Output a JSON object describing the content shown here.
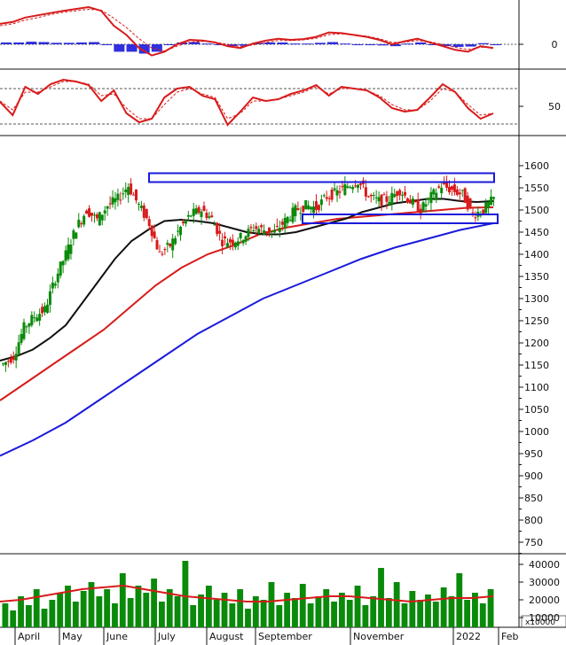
{
  "chart_data": [
    {
      "type": "line",
      "panel": "macd",
      "title": "",
      "y_ticks": [
        0
      ],
      "series": [
        {
          "name": "",
          "color": "#d81b1b",
          "values": [
            0.55,
            0.6,
            0.72,
            0.78,
            0.84,
            0.9,
            0.95,
            1.0,
            0.9,
            0.5,
            0.25,
            -0.1,
            -0.3,
            -0.2,
            0.0,
            0.12,
            0.1,
            0.05,
            -0.05,
            -0.1,
            0.02,
            0.1,
            0.15,
            0.12,
            0.14,
            0.2,
            0.32,
            0.3,
            0.25,
            0.2,
            0.12,
            0.0,
            0.08,
            0.15,
            0.05,
            -0.05,
            -0.15,
            -0.2,
            -0.05,
            -0.1
          ]
        },
        {
          "name": "",
          "color": "#d81b1b",
          "values": [
            0.5,
            0.55,
            0.65,
            0.72,
            0.8,
            0.86,
            0.9,
            0.94,
            0.92,
            0.7,
            0.45,
            0.15,
            -0.1,
            -0.18,
            -0.05,
            0.06,
            0.08,
            0.06,
            0.0,
            -0.06,
            -0.02,
            0.05,
            0.1,
            0.1,
            0.12,
            0.16,
            0.26,
            0.28,
            0.26,
            0.22,
            0.15,
            0.05,
            0.06,
            0.1,
            0.07,
            0.0,
            -0.08,
            -0.14,
            -0.08,
            -0.08
          ]
        },
        {
          "name": "",
          "color": "#1a1adb",
          "type": "histogram",
          "values": [
            0.05,
            0.05,
            0.07,
            0.06,
            0.04,
            0.04,
            0.05,
            0.06,
            -0.02,
            -0.2,
            -0.2,
            -0.25,
            -0.2,
            -0.02,
            0.05,
            0.06,
            0.02,
            -0.01,
            -0.05,
            -0.04,
            0.04,
            0.05,
            0.05,
            0.02,
            0.02,
            0.04,
            0.06,
            0.02,
            -0.01,
            -0.02,
            -0.03,
            -0.05,
            0.02,
            0.05,
            -0.02,
            -0.05,
            -0.07,
            -0.06,
            0.03,
            -0.02
          ]
        }
      ]
    },
    {
      "type": "line",
      "panel": "rsi",
      "title": "",
      "y_ticks": [
        50
      ],
      "levels": [
        70,
        30
      ],
      "series": [
        {
          "name": "",
          "color": "#d81b1b",
          "values": [
            55,
            40,
            72,
            64,
            75,
            80,
            78,
            74,
            56,
            68,
            42,
            32,
            36,
            60,
            70,
            72,
            62,
            58,
            29,
            44,
            60,
            56,
            58,
            64,
            68,
            74,
            62,
            72,
            70,
            68,
            60,
            48,
            44,
            46,
            60,
            75,
            66,
            48,
            36,
            42
          ]
        },
        {
          "name": "",
          "color": "#d81b1b",
          "values": [
            56,
            46,
            66,
            66,
            72,
            78,
            78,
            75,
            62,
            64,
            48,
            36,
            36,
            52,
            66,
            70,
            64,
            60,
            36,
            42,
            56,
            56,
            58,
            62,
            66,
            72,
            64,
            70,
            70,
            68,
            62,
            52,
            46,
            46,
            56,
            70,
            66,
            52,
            40,
            42
          ]
        }
      ]
    },
    {
      "type": "candlestick",
      "panel": "price",
      "title": "",
      "ylim": [
        725,
        1625
      ],
      "y_ticks": [
        750,
        800,
        850,
        900,
        950,
        1000,
        1050,
        1100,
        1150,
        1200,
        1250,
        1300,
        1350,
        1400,
        1450,
        1500,
        1550,
        1600
      ],
      "x_labels": [
        "April",
        "May",
        "June",
        "July",
        "August",
        "September",
        "November",
        "2022",
        "Feb"
      ],
      "close": [
        1152,
        1170,
        1235,
        1260,
        1275,
        1345,
        1400,
        1460,
        1500,
        1478,
        1510,
        1525,
        1555,
        1510,
        1470,
        1400,
        1420,
        1460,
        1490,
        1500,
        1480,
        1430,
        1430,
        1440,
        1460,
        1455,
        1450,
        1475,
        1500,
        1510,
        1505,
        1530,
        1540,
        1555,
        1565,
        1530,
        1520,
        1525,
        1545,
        1520,
        1500,
        1530,
        1555,
        1545,
        1535,
        1490,
        1500,
        1525
      ],
      "ma_black": [
        1160,
        1170,
        1185,
        1210,
        1240,
        1290,
        1340,
        1390,
        1430,
        1455,
        1475,
        1478,
        1475,
        1470,
        1460,
        1450,
        1445,
        1445,
        1450,
        1460,
        1470,
        1480,
        1495,
        1505,
        1515,
        1520,
        1525,
        1525,
        1520,
        1518,
        1520
      ],
      "ma_red": [
        1070,
        1110,
        1150,
        1190,
        1230,
        1280,
        1330,
        1370,
        1400,
        1420,
        1445,
        1460,
        1470,
        1480,
        1485,
        1490,
        1495,
        1500,
        1505,
        1506
      ],
      "ma_blue": [
        945,
        980,
        1020,
        1070,
        1120,
        1170,
        1220,
        1260,
        1300,
        1330,
        1360,
        1390,
        1415,
        1435,
        1455,
        1470
      ],
      "resistance_zone": {
        "low": 1563,
        "high": 1583
      },
      "support_zone": {
        "low": 1470,
        "high": 1490
      }
    },
    {
      "type": "bar",
      "panel": "volume",
      "title": "",
      "ylim": [
        0,
        45000
      ],
      "y_ticks": [
        10000,
        20000,
        30000,
        40000
      ],
      "scale_label": "x10000",
      "values": [
        18000,
        14000,
        22000,
        17000,
        26000,
        15000,
        20000,
        24000,
        28000,
        19000,
        25000,
        30000,
        22000,
        26000,
        18000,
        35000,
        21000,
        28000,
        24000,
        32000,
        19000,
        26000,
        22000,
        42000,
        17000,
        23000,
        28000,
        20000,
        24000,
        18000,
        26000,
        15000,
        22000,
        20000,
        30000,
        17000,
        24000,
        21000,
        29000,
        18000,
        22000,
        26000,
        19000,
        24000,
        20000,
        28000,
        17000,
        22000,
        38000,
        21000,
        30000,
        18000,
        25000,
        20000,
        23000,
        19000,
        27000,
        22000,
        35000,
        20000,
        24000,
        18000,
        26000
      ],
      "ma_red": [
        19000,
        20000,
        22000,
        24000,
        26000,
        27000,
        28000,
        26000,
        24000,
        22000,
        21000,
        20000,
        19000,
        19000,
        20000,
        21000,
        22000,
        22000,
        21000,
        20000,
        19000,
        20000,
        21000,
        21000,
        22000
      ]
    }
  ]
}
